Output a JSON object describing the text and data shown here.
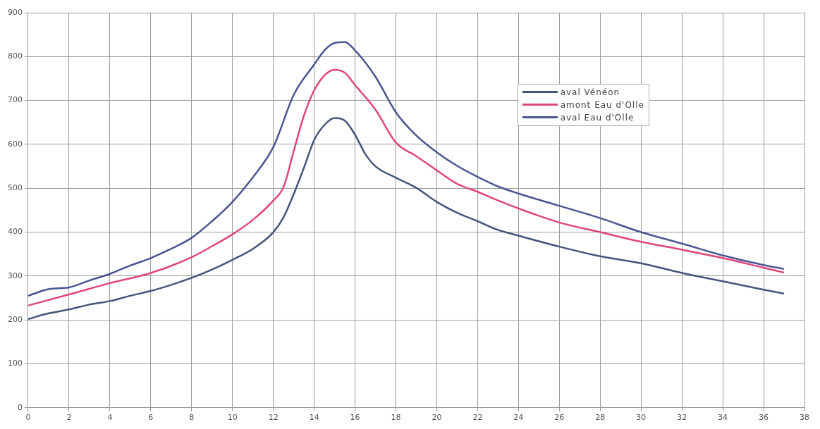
{
  "chart_data": {
    "type": "line",
    "xlim": [
      0,
      38
    ],
    "xticks": [
      0,
      2,
      4,
      6,
      8,
      10,
      12,
      14,
      16,
      18,
      20,
      22,
      24,
      26,
      28,
      30,
      32,
      34,
      36,
      38
    ],
    "ylim": [
      0,
      900
    ],
    "yticks": [
      0,
      100,
      200,
      300,
      400,
      500,
      600,
      700,
      800,
      900
    ],
    "grid": true,
    "legend": "top right",
    "marker": "none",
    "line_style": "solid",
    "series": [
      {
        "name": "aval Vénéon",
        "color": "#44557a",
        "x": [
          0,
          1,
          2,
          3,
          4,
          5,
          6,
          7,
          8,
          9,
          10,
          11,
          12,
          12.5,
          13,
          13.5,
          14,
          14.5,
          15,
          15.5,
          16,
          16.5,
          17,
          18,
          19,
          20,
          21,
          22,
          23,
          24,
          26,
          28,
          30,
          32,
          34,
          36,
          37
        ],
        "values": [
          202,
          215,
          224,
          235,
          243,
          255,
          266,
          280,
          296,
          315,
          337,
          362,
          400,
          434,
          487,
          547,
          610,
          644,
          660,
          654,
          622,
          578,
          550,
          524,
          501,
          469,
          444,
          425,
          405,
          392,
          367,
          345,
          329,
          307,
          288,
          269,
          260
        ]
      },
      {
        "name": "amont Eau d'Olle",
        "color": "#e0457a",
        "x": [
          0,
          2,
          4,
          6,
          8,
          9,
          10,
          11,
          12,
          12.5,
          13,
          13.5,
          14,
          14.5,
          15,
          15.5,
          16,
          17,
          18,
          19,
          20,
          21,
          22,
          23,
          24,
          26,
          28,
          30,
          32,
          34,
          36,
          37
        ],
        "values": [
          233,
          258,
          284,
          307,
          343,
          368,
          395,
          428,
          472,
          503,
          585,
          666,
          723,
          757,
          770,
          763,
          735,
          679,
          604,
          573,
          541,
          510,
          492,
          472,
          454,
          422,
          400,
          378,
          360,
          341,
          319,
          308
        ]
      },
      {
        "name": "aval Eau d'Olle",
        "color": "#4a5590",
        "x": [
          0,
          1,
          2,
          3,
          4,
          5,
          6,
          7,
          8,
          9,
          10,
          11,
          12,
          13,
          14,
          14.5,
          15,
          15.5,
          16,
          17,
          18,
          19,
          20,
          21,
          22,
          23,
          24,
          26,
          28,
          30,
          32,
          34,
          36,
          37
        ],
        "values": [
          255,
          270,
          274,
          290,
          305,
          324,
          341,
          362,
          387,
          425,
          469,
          525,
          594,
          713,
          782,
          814,
          831,
          833,
          814,
          754,
          673,
          620,
          582,
          551,
          526,
          504,
          488,
          460,
          432,
          400,
          374,
          347,
          325,
          316
        ]
      }
    ]
  }
}
